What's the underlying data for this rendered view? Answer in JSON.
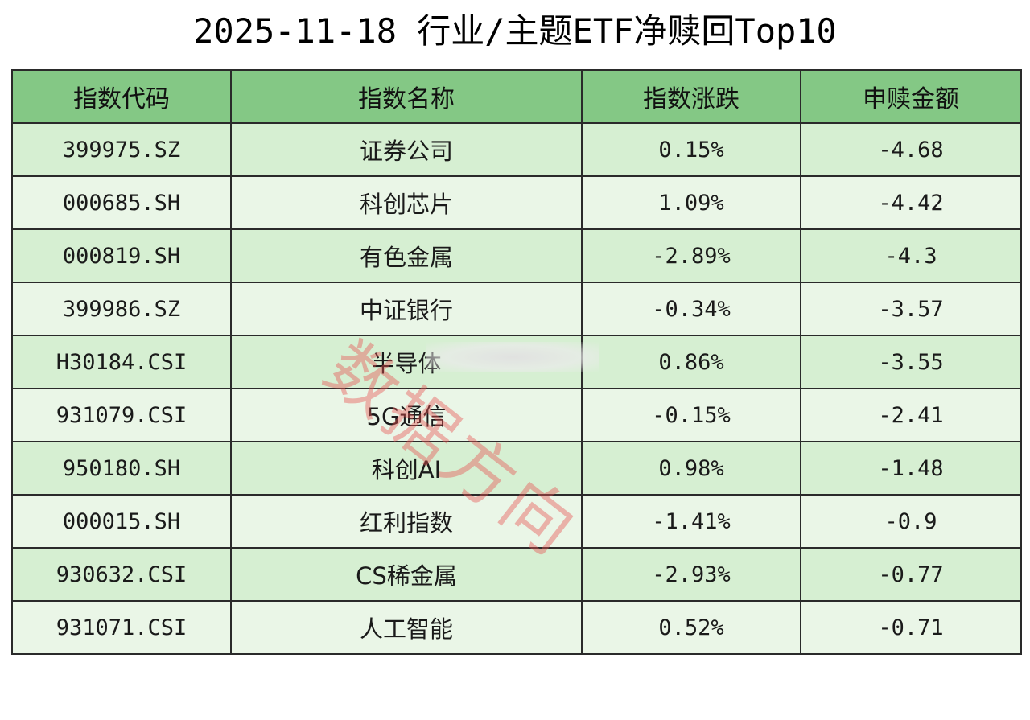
{
  "title": "2025-11-18 行业/主题ETF净赎回Top10",
  "table": {
    "headers": [
      "指数代码",
      "指数名称",
      "指数涨跌",
      "申赎金额"
    ],
    "rows": [
      {
        "code": "399975.SZ",
        "name": "证券公司",
        "change": "0.15%",
        "amount": "-4.68"
      },
      {
        "code": "000685.SH",
        "name": "科创芯片",
        "change": "1.09%",
        "amount": "-4.42"
      },
      {
        "code": "000819.SH",
        "name": "有色金属",
        "change": "-2.89%",
        "amount": "-4.3"
      },
      {
        "code": "399986.SZ",
        "name": "中证银行",
        "change": "-0.34%",
        "amount": "-3.57"
      },
      {
        "code": "H30184.CSI",
        "name": "半导体",
        "change": "0.86%",
        "amount": "-3.55"
      },
      {
        "code": "931079.CSI",
        "name": "5G通信",
        "change": "-0.15%",
        "amount": "-2.41"
      },
      {
        "code": "950180.SH",
        "name": "科创AI",
        "change": "0.98%",
        "amount": "-1.48"
      },
      {
        "code": "000015.SH",
        "name": "红利指数",
        "change": "-1.41%",
        "amount": "-0.9"
      },
      {
        "code": "930632.CSI",
        "name": "CS稀金属",
        "change": "-2.93%",
        "amount": "-0.77"
      },
      {
        "code": "931071.CSI",
        "name": "人工智能",
        "change": "0.52%",
        "amount": "-0.71"
      }
    ]
  },
  "watermark": {
    "text": "数据方向",
    "color": "#e85050"
  },
  "colors": {
    "header_bg": "#84c885",
    "row_odd": "#d6efd2",
    "row_even": "#eaf6e7",
    "border": "#2a2a2a"
  }
}
